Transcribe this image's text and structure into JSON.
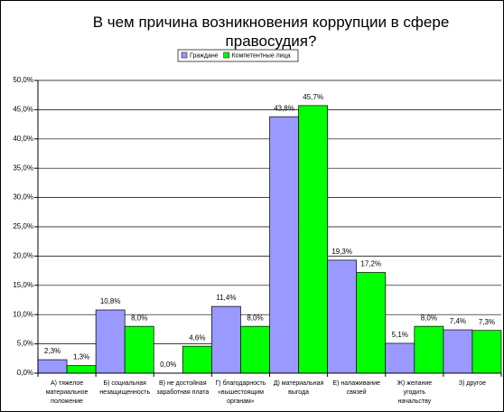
{
  "chart_data": {
    "type": "bar",
    "title": "В чем причина возникновения коррупции в сфере правосудия?",
    "categories": [
      "А) тяжелое материальное положение",
      "Б) социальная незащищенность",
      "В) не достойная заработная плата",
      "Г) благодарность «вышестоящим органам»",
      "Д) материальная выгода",
      "Е) налаживание связей",
      "Ж) желание угодить начальству",
      "З) другое"
    ],
    "series": [
      {
        "name": "Граждане",
        "color": "#9999ff",
        "values": [
          2.3,
          10.8,
          0.0,
          11.4,
          43.8,
          19.3,
          5.1,
          7.4
        ],
        "value_labels": [
          "2,3%",
          "10,8%",
          "0,0%",
          "11,4%",
          "43,8%",
          "19,3%",
          "5,1%",
          "7,4%"
        ]
      },
      {
        "name": "Компетентные лица",
        "color": "#00ff00",
        "values": [
          1.3,
          8.0,
          4.6,
          8.0,
          45.7,
          17.2,
          8.0,
          7.3
        ],
        "value_labels": [
          "1,3%",
          "8,0%",
          "4,6%",
          "8,0%",
          "45,7%",
          "17,2%",
          "8,0%",
          "7,3%"
        ]
      }
    ],
    "ylim": [
      0,
      50
    ],
    "yticks": [
      {
        "value": 0,
        "label": "0,0%"
      },
      {
        "value": 5,
        "label": "5,0%"
      },
      {
        "value": 10,
        "label": "10,0%"
      },
      {
        "value": 15,
        "label": "15,0%"
      },
      {
        "value": 20,
        "label": "20,0%"
      },
      {
        "value": 25,
        "label": "25,0%"
      },
      {
        "value": 30,
        "label": "30,0%"
      },
      {
        "value": 35,
        "label": "35,0%"
      },
      {
        "value": 40,
        "label": "40,0%"
      },
      {
        "value": 45,
        "label": "45,0%"
      },
      {
        "value": 50,
        "label": "50,0%"
      }
    ],
    "grid": true,
    "legend": "top"
  }
}
